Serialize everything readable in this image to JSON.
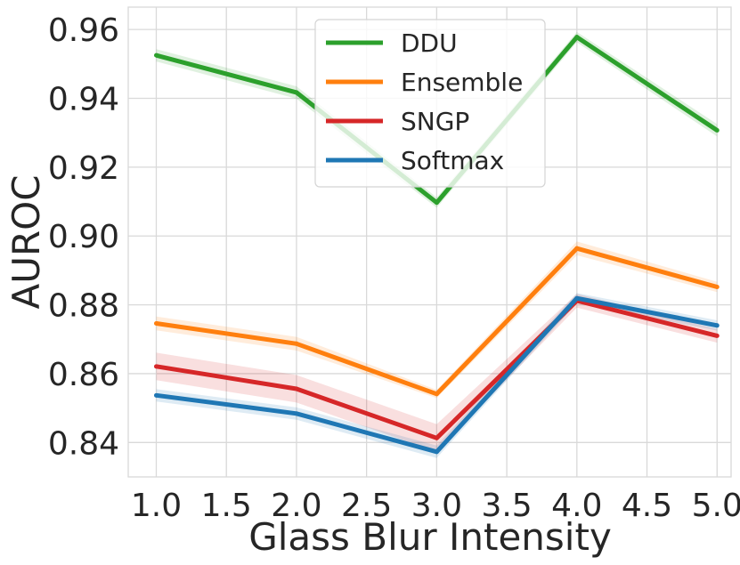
{
  "chart_data": {
    "type": "line",
    "title": "",
    "xlabel": "Glass Blur Intensity",
    "ylabel": "AUROC",
    "x": [
      1.0,
      2.0,
      3.0,
      4.0,
      5.0
    ],
    "xticks": [
      "1.0",
      "1.5",
      "2.0",
      "2.5",
      "3.0",
      "3.5",
      "4.0",
      "4.5",
      "5.0"
    ],
    "xtick_values": [
      1.0,
      1.5,
      2.0,
      2.5,
      3.0,
      3.5,
      4.0,
      4.5,
      5.0
    ],
    "yticks": [
      "0.84",
      "0.86",
      "0.88",
      "0.90",
      "0.92",
      "0.94",
      "0.96"
    ],
    "ytick_values": [
      0.84,
      0.86,
      0.88,
      0.9,
      0.92,
      0.94,
      0.96
    ],
    "xlim": [
      0.8,
      5.1
    ],
    "ylim": [
      0.83,
      0.9665
    ],
    "grid": true,
    "legend_position": "top-center",
    "series": [
      {
        "name": "DDU",
        "color": "#2ca02c",
        "values": [
          0.9525,
          0.9417,
          0.9097,
          0.9578,
          0.9307
        ],
        "band": [
          0.0018,
          0.0018,
          0.0015,
          0.0015,
          0.0018
        ]
      },
      {
        "name": "Ensemble",
        "color": "#ff7f0e",
        "values": [
          0.8746,
          0.8687,
          0.8541,
          0.8964,
          0.8852
        ],
        "band": [
          0.002,
          0.002,
          0.0012,
          0.002,
          0.0015
        ]
      },
      {
        "name": "SNGP",
        "color": "#d62728",
        "values": [
          0.8621,
          0.8556,
          0.8413,
          0.8812,
          0.871
        ],
        "band": [
          0.004,
          0.004,
          0.004,
          0.002,
          0.002
        ]
      },
      {
        "name": "Softmax",
        "color": "#1f77b4",
        "values": [
          0.8537,
          0.8484,
          0.8373,
          0.8819,
          0.874
        ],
        "band": [
          0.0018,
          0.0018,
          0.0018,
          0.0015,
          0.0015
        ]
      }
    ]
  }
}
